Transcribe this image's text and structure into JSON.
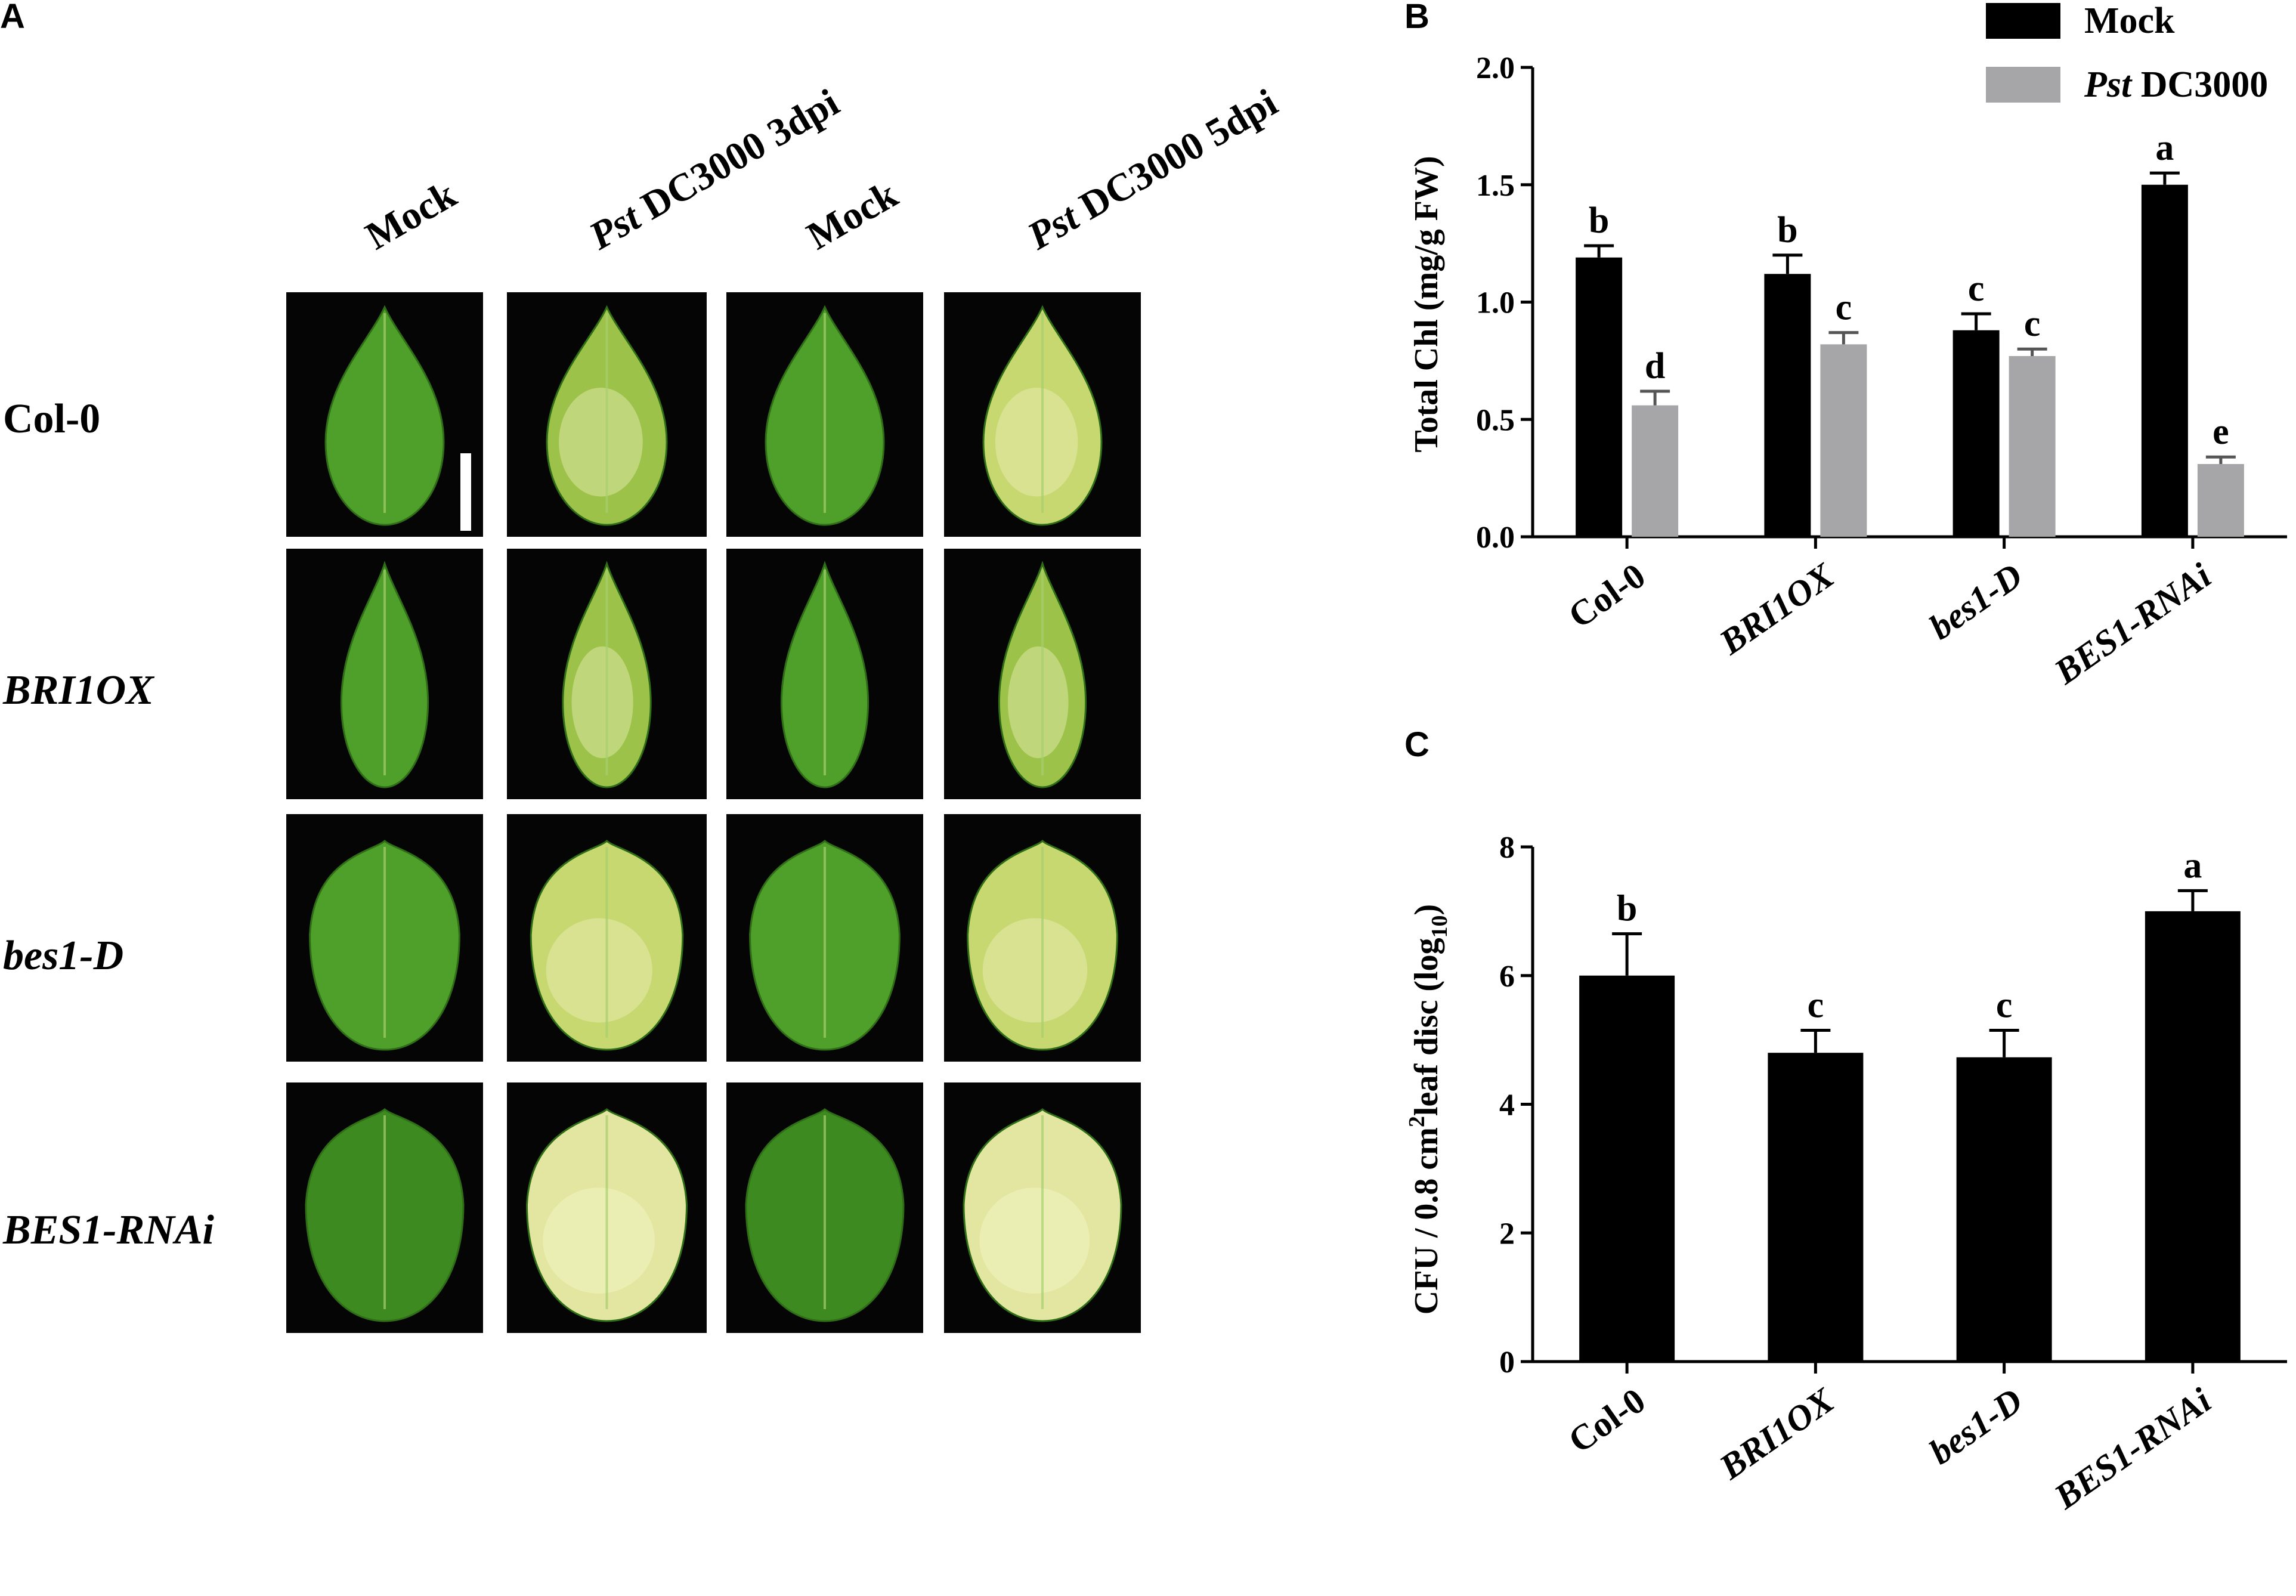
{
  "panels": {
    "a": "A",
    "b": "B",
    "c": "C"
  },
  "panel_a": {
    "columns": [
      "Mock",
      "Pst DC3000 3dpi",
      "Mock",
      "Pst DC3000 5dpi"
    ],
    "column_italic_prefix": [
      "",
      "Pst",
      "",
      "Pst"
    ],
    "column_rest": [
      "Mock",
      " DC3000 3dpi",
      "Mock",
      " DC3000 5dpi"
    ],
    "rows": [
      {
        "label": "Col-0",
        "italic": false
      },
      {
        "label": "BRI1OX",
        "italic": true
      },
      {
        "label": "bes1-D",
        "italic": true
      },
      {
        "label": "BES1-RNAi",
        "italic": true
      }
    ],
    "leaf_shapes": [
      "lanceolate",
      "narrow",
      "round",
      "round-large"
    ],
    "leaf_health": [
      [
        "healthy",
        "chlorotic-mild",
        "healthy",
        "chlorotic"
      ],
      [
        "healthy",
        "chlorotic-mild",
        "healthy",
        "chlorotic-mild"
      ],
      [
        "healthy",
        "chlorotic",
        "healthy",
        "chlorotic"
      ],
      [
        "healthy-dark",
        "chlorotic-severe",
        "healthy-dark",
        "chlorotic-severe"
      ]
    ],
    "colors": {
      "healthy": "#4fa02a",
      "healthy-dark": "#3c8a20",
      "chlorotic-mild": "#9cc24a",
      "chlorotic": "#c7d870",
      "chlorotic-severe": "#e3e6a0",
      "background": "#050505"
    }
  },
  "chart_data": [
    {
      "type": "bar",
      "panel": "B",
      "categories": [
        "Col-0",
        "BRI1OX",
        "bes1-D",
        "BES1-RNAi"
      ],
      "category_italic": [
        false,
        true,
        true,
        true
      ],
      "ylabel": "Total Chl (mg/g FW)",
      "ylim": [
        0,
        2.0
      ],
      "yticks": [
        "0.0",
        "0.5",
        "1.0",
        "1.5",
        "2.0"
      ],
      "ytick_values": [
        0,
        0.5,
        1.0,
        1.5,
        2.0
      ],
      "legend_position": "top-right",
      "series": [
        {
          "name": "Mock",
          "name_italic": "",
          "name_rest": "Mock",
          "color": "#000000",
          "values": [
            1.19,
            1.12,
            0.88,
            1.5
          ],
          "errors": [
            0.05,
            0.08,
            0.07,
            0.05
          ],
          "letters": [
            "b",
            "b",
            "c",
            "a"
          ]
        },
        {
          "name": "Pst DC3000",
          "name_italic": "Pst",
          "name_rest": " DC3000",
          "color": "#a6a6a8",
          "values": [
            0.56,
            0.82,
            0.77,
            0.31
          ],
          "errors": [
            0.06,
            0.05,
            0.03,
            0.03
          ],
          "letters": [
            "d",
            "c",
            "c",
            "e"
          ]
        }
      ]
    },
    {
      "type": "bar",
      "panel": "C",
      "categories": [
        "Col-0",
        "BRI1OX",
        "bes1-D",
        "BES1-RNAi"
      ],
      "category_italic": [
        false,
        true,
        true,
        true
      ],
      "ylabel": "CFU / 0.8 cm² leaf disc (log₁₀)",
      "ylabel_parts": [
        "CFU  /  0.8 cm",
        "2",
        "leaf disc (log",
        "10",
        ")"
      ],
      "ylim": [
        0,
        8
      ],
      "yticks": [
        "0",
        "2",
        "4",
        "6",
        "8"
      ],
      "ytick_values": [
        0,
        2,
        4,
        6,
        8
      ],
      "series": [
        {
          "name": "",
          "color": "#000000",
          "values": [
            6.0,
            4.8,
            4.73,
            7.0
          ],
          "errors": [
            0.65,
            0.35,
            0.42,
            0.32
          ],
          "letters": [
            "b",
            "c",
            "c",
            "a"
          ]
        }
      ]
    }
  ]
}
